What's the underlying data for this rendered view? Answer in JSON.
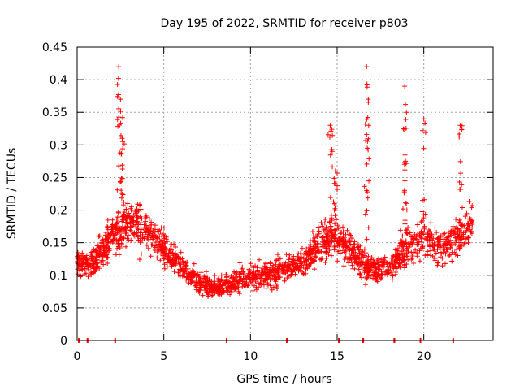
{
  "chart_data": {
    "type": "scatter",
    "title": "Day 195 of 2022, SRMTID for receiver p803",
    "xlabel": "GPS time / hours",
    "ylabel": "SRMTID / TECUs",
    "xlim": [
      0,
      24
    ],
    "ylim": [
      0,
      0.45
    ],
    "xticks": [
      0,
      5,
      10,
      15,
      20
    ],
    "xtick_labels": [
      "0",
      "5",
      "10",
      "15",
      "20"
    ],
    "yticks": [
      0,
      0.05,
      0.1,
      0.15,
      0.2,
      0.25,
      0.3,
      0.35,
      0.4,
      0.45
    ],
    "ytick_labels": [
      "0",
      "0.05",
      "0.1",
      "0.15",
      "0.2",
      "0.25",
      "0.3",
      "0.35",
      "0.4",
      "0.45"
    ],
    "grid": true,
    "marker": "+",
    "color": "#ff0000",
    "series": [
      {
        "name": "SRMTID",
        "trend": {
          "x": [
            0,
            1,
            2,
            3,
            4,
            5,
            6,
            7,
            8,
            9,
            10,
            11,
            12,
            13,
            14,
            15,
            16,
            17,
            18,
            19,
            20,
            21,
            22,
            22.8
          ],
          "y": [
            0.12,
            0.12,
            0.16,
            0.18,
            0.17,
            0.14,
            0.11,
            0.09,
            0.08,
            0.09,
            0.1,
            0.1,
            0.11,
            0.12,
            0.15,
            0.16,
            0.13,
            0.11,
            0.11,
            0.14,
            0.16,
            0.14,
            0.16,
            0.18
          ]
        },
        "spikes": [
          {
            "x": 2.4,
            "y": 0.42
          },
          {
            "x": 2.5,
            "y": 0.37
          },
          {
            "x": 2.6,
            "y": 0.31
          },
          {
            "x": 14.6,
            "y": 0.33
          },
          {
            "x": 14.9,
            "y": 0.26
          },
          {
            "x": 16.7,
            "y": 0.42
          },
          {
            "x": 16.8,
            "y": 0.37
          },
          {
            "x": 18.9,
            "y": 0.39
          },
          {
            "x": 19.0,
            "y": 0.35
          },
          {
            "x": 20.0,
            "y": 0.34
          },
          {
            "x": 22.1,
            "y": 0.33
          }
        ],
        "zero_points_x": [
          0.1,
          0.6,
          2.2,
          8.6,
          12.1,
          15.1,
          16.5,
          18.3,
          19.8,
          21.7
        ]
      }
    ]
  }
}
